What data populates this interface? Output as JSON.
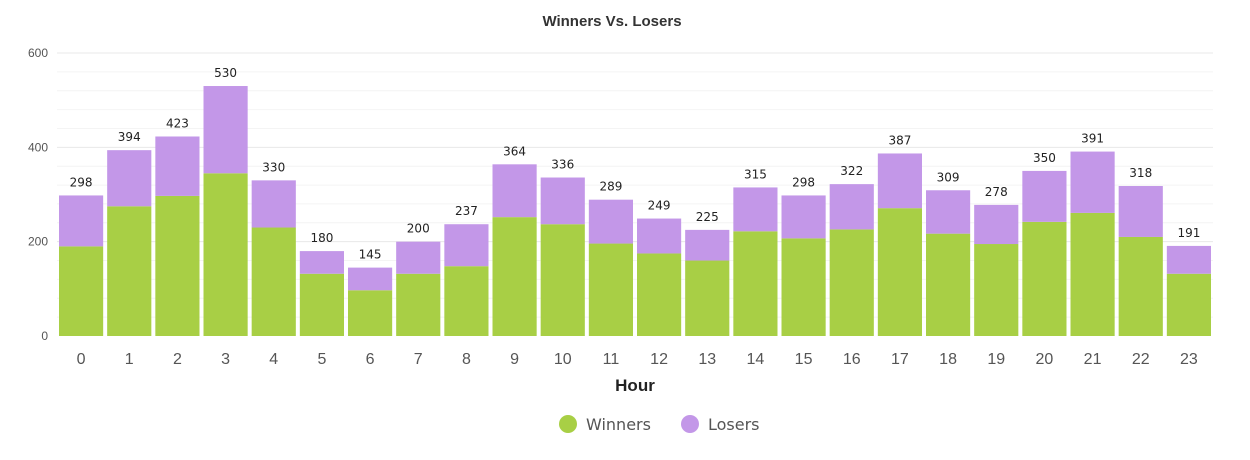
{
  "chart_data": {
    "type": "bar",
    "stacked": true,
    "title": "Winners Vs. Losers",
    "xlabel": "Hour",
    "ylabel": "",
    "ylim": [
      0,
      600
    ],
    "yticks": [
      0,
      200,
      400,
      600
    ],
    "grid": true,
    "legend_position": "bottom-center",
    "categories": [
      "0",
      "1",
      "2",
      "3",
      "4",
      "5",
      "6",
      "7",
      "8",
      "9",
      "10",
      "11",
      "12",
      "13",
      "14",
      "15",
      "16",
      "17",
      "18",
      "19",
      "20",
      "21",
      "22",
      "23"
    ],
    "series": [
      {
        "name": "Winners",
        "color": "#a8cf45",
        "values": [
          190,
          275,
          297,
          345,
          230,
          132,
          97,
          132,
          148,
          252,
          237,
          196,
          175,
          160,
          222,
          207,
          226,
          271,
          217,
          195,
          242,
          261,
          210,
          132
        ]
      },
      {
        "name": "Losers",
        "color": "#c397e8",
        "values": [
          108,
          119,
          126,
          185,
          100,
          48,
          48,
          68,
          89,
          112,
          99,
          93,
          74,
          65,
          93,
          91,
          96,
          116,
          92,
          83,
          108,
          130,
          108,
          59
        ]
      }
    ],
    "totals": [
      298,
      394,
      423,
      530,
      330,
      180,
      145,
      200,
      237,
      364,
      336,
      289,
      249,
      225,
      315,
      298,
      322,
      387,
      309,
      278,
      350,
      391,
      318,
      191
    ]
  }
}
